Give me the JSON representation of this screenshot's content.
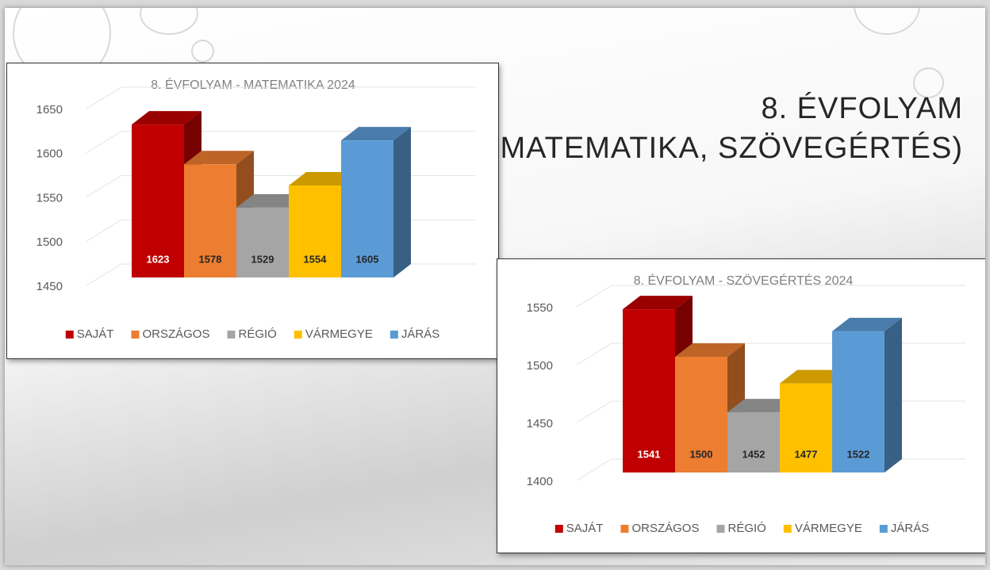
{
  "slide_title": [
    "8. ÉVFOLYAM",
    "(MATEMATIKA, SZÖVEGÉRTÉS)"
  ],
  "chart_data": [
    {
      "type": "bar3d",
      "title": "8. ÉVFOLYAM - MATEMATIKA 2024",
      "series": [
        {
          "name": "SAJÁT",
          "color": "#c00000",
          "values": [
            1623
          ]
        },
        {
          "name": "ORSZÁGOS",
          "color": "#ed7d31",
          "values": [
            1578
          ]
        },
        {
          "name": "RÉGIÓ",
          "color": "#a5a5a5",
          "values": [
            1529
          ]
        },
        {
          "name": "VÁRMEGYE",
          "color": "#ffc000",
          "values": [
            1554
          ]
        },
        {
          "name": "JÁRÁS",
          "color": "#5b9bd5",
          "values": [
            1605
          ]
        }
      ],
      "ylim": [
        1450,
        1650
      ],
      "yticks": [
        1450,
        1500,
        1550,
        1600,
        1650
      ],
      "grid": true,
      "legend": "bottom"
    },
    {
      "type": "bar3d",
      "title": "8. ÉVFOLYAM - SZÖVEGÉRTÉS 2024",
      "series": [
        {
          "name": "SAJÁT",
          "color": "#c00000",
          "values": [
            1541
          ]
        },
        {
          "name": "ORSZÁGOS",
          "color": "#ed7d31",
          "values": [
            1500
          ]
        },
        {
          "name": "RÉGIÓ",
          "color": "#a5a5a5",
          "values": [
            1452
          ]
        },
        {
          "name": "VÁRMEGYE",
          "color": "#ffc000",
          "values": [
            1477
          ]
        },
        {
          "name": "JÁRÁS",
          "color": "#5b9bd5",
          "values": [
            1522
          ]
        }
      ],
      "ylim": [
        1400,
        1550
      ],
      "yticks": [
        1400,
        1450,
        1500,
        1550
      ],
      "grid": true,
      "legend": "bottom"
    }
  ]
}
